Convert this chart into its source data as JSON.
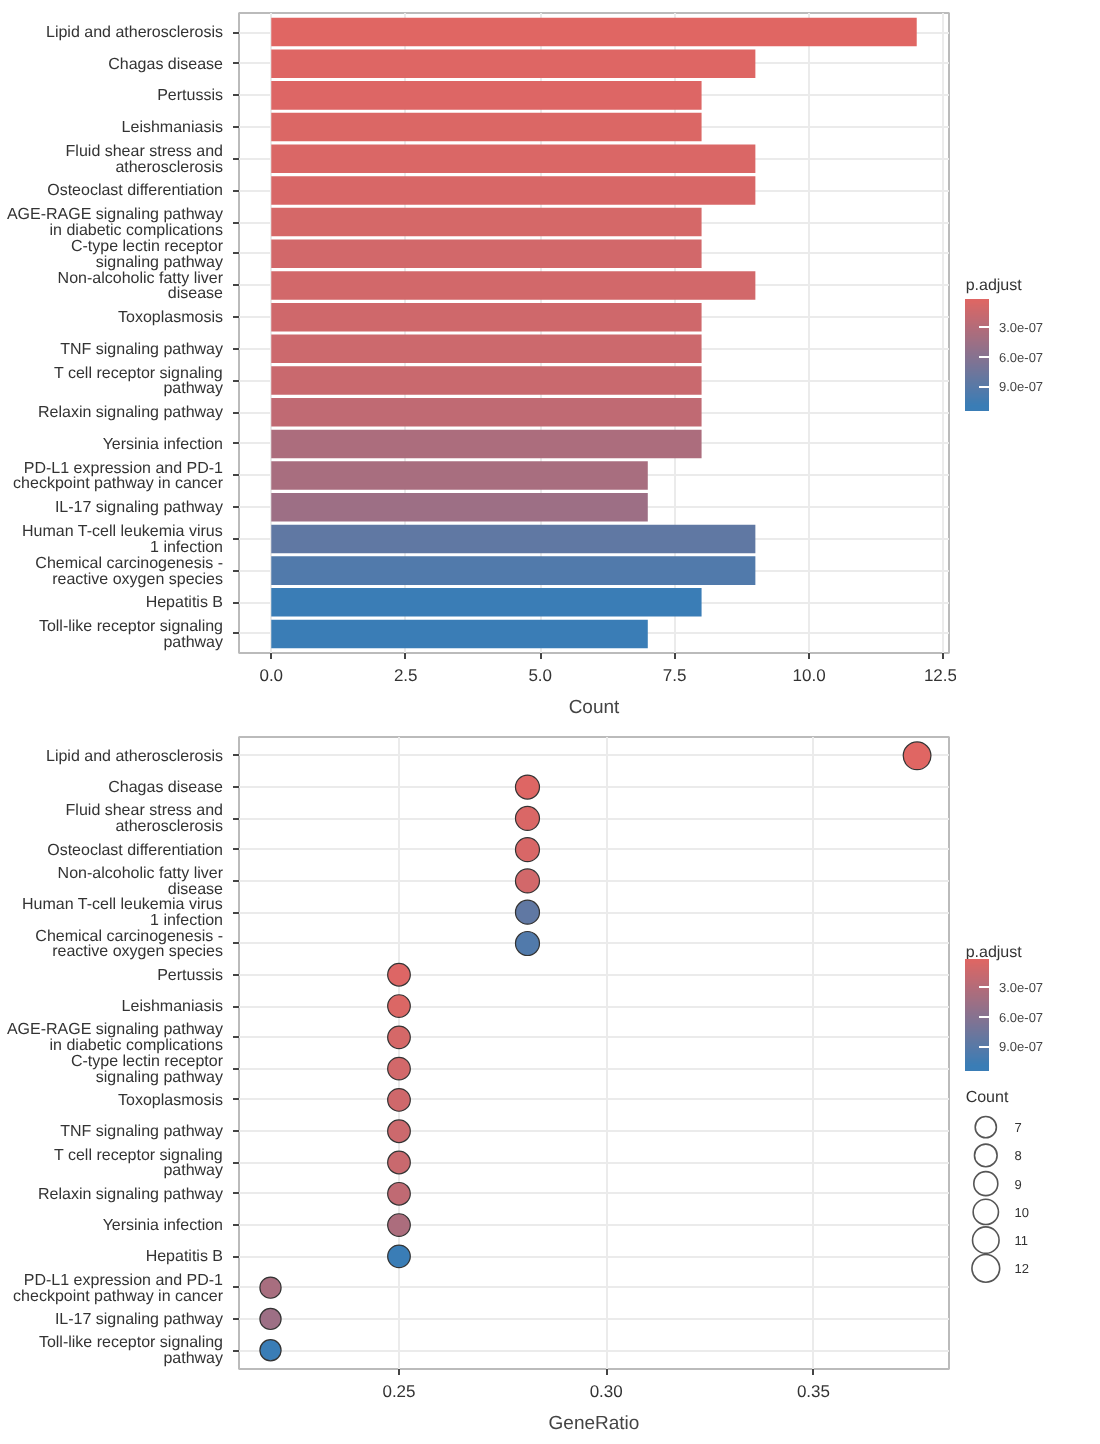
{
  "chart_data": [
    {
      "type": "bar",
      "orientation": "horizontal",
      "xlabel": "Count",
      "clabel": "p.adjust",
      "categories": [
        "Lipid and atherosclerosis",
        "Chagas disease",
        "Pertussis",
        "Leishmaniasis",
        "Fluid shear stress and\natherosclerosis",
        "Osteoclast differentiation",
        "AGE-RAGE signaling pathway\nin diabetic complications",
        "C-type lectin receptor\nsignaling pathway",
        "Non-alcoholic fatty liver\ndisease",
        "Toxoplasmosis",
        "TNF signaling pathway",
        "T cell receptor signaling\npathway",
        "Relaxin signaling pathway",
        "Yersinia infection",
        "PD-L1 expression and PD-1\ncheckpoint pathway in cancer",
        "IL-17 signaling pathway",
        "Human T-cell leukemia virus\n1 infection",
        "Chemical carcinogenesis -\nreactive oxygen species",
        "Hepatitis B",
        "Toll-like receptor signaling\npathway"
      ],
      "values": [
        12,
        9,
        8,
        8,
        9,
        9,
        8,
        8,
        9,
        8,
        8,
        8,
        8,
        8,
        7,
        7,
        9,
        9,
        8,
        7
      ],
      "cvalues": [
        1e-08,
        2e-08,
        3e-08,
        4e-08,
        5e-08,
        6e-08,
        8e-08,
        1e-07,
        1e-07,
        1.2e-07,
        1.4e-07,
        1.6e-07,
        2.2e-07,
        3.5e-07,
        3.8e-07,
        4.5e-07,
        8.5e-07,
        9.5e-07,
        1.1e-06,
        1.1e-06
      ],
      "colors": [
        "#e06663",
        "#de6664",
        "#dd6665",
        "#db6765",
        "#da6766",
        "#d86767",
        "#d56868",
        "#d2686a",
        "#d2686a",
        "#cf686b",
        "#cc696d",
        "#c9696e",
        "#c06a73",
        "#ac6d7d",
        "#a86e7f",
        "#9d6f85",
        "#6078a3",
        "#517aab",
        "#3a7db6",
        "#3a7db6"
      ],
      "clim": [
        1e-08,
        1.15e-06
      ],
      "cticks": [
        {
          "value": 3e-07,
          "label": "3.0e-07"
        },
        {
          "value": 6e-07,
          "label": "6.0e-07"
        },
        {
          "value": 9e-07,
          "label": "9.0e-07"
        }
      ],
      "xlim": [
        -0.6,
        12.6
      ],
      "xticks": [
        {
          "value": 0,
          "label": "0.0"
        },
        2.5,
        {
          "value": 5,
          "label": "5.0"
        },
        7.5,
        {
          "value": 10,
          "label": "10.0"
        },
        12.5
      ],
      "grid": true
    },
    {
      "type": "bubble",
      "orientation": "horizontal",
      "xlabel": "GeneRatio",
      "clabel": "p.adjust",
      "legend_title": "Count",
      "categories": [
        "Lipid and atherosclerosis",
        "Chagas disease",
        "Fluid shear stress and\natherosclerosis",
        "Osteoclast differentiation",
        "Non-alcoholic fatty liver\ndisease",
        "Human T-cell leukemia virus\n1 infection",
        "Chemical carcinogenesis -\nreactive oxygen species",
        "Pertussis",
        "Leishmaniasis",
        "AGE-RAGE signaling pathway\nin diabetic complications",
        "C-type lectin receptor\nsignaling pathway",
        "Toxoplasmosis",
        "TNF signaling pathway",
        "T cell receptor signaling\npathway",
        "Relaxin signaling pathway",
        "Yersinia infection",
        "Hepatitis B",
        "PD-L1 expression and PD-1\ncheckpoint pathway in cancer",
        "IL-17 signaling pathway",
        "Toll-like receptor signaling\npathway"
      ],
      "values": [
        0.375,
        0.281,
        0.281,
        0.281,
        0.281,
        0.281,
        0.281,
        0.25,
        0.25,
        0.25,
        0.25,
        0.25,
        0.25,
        0.25,
        0.25,
        0.25,
        0.25,
        0.219,
        0.219,
        0.219
      ],
      "sizes": [
        12,
        9,
        9,
        9,
        9,
        9,
        9,
        8,
        8,
        8,
        8,
        8,
        8,
        8,
        8,
        8,
        8,
        7,
        7,
        7
      ],
      "size_legend": [
        7,
        8,
        9,
        10,
        11,
        12
      ],
      "cvalues": [
        1e-08,
        2e-08,
        5e-08,
        6e-08,
        1e-07,
        8.5e-07,
        9.5e-07,
        3e-08,
        4e-08,
        8e-08,
        1e-07,
        1.2e-07,
        1.4e-07,
        1.6e-07,
        2.2e-07,
        3.5e-07,
        1.1e-06,
        3.8e-07,
        4.5e-07,
        1.1e-06
      ],
      "colors": [
        "#e06663",
        "#de6664",
        "#da6766",
        "#d86767",
        "#d2686a",
        "#6078a3",
        "#517aab",
        "#dd6665",
        "#db6765",
        "#d56868",
        "#d2686a",
        "#cf686b",
        "#cc696d",
        "#c9696e",
        "#c06a73",
        "#ac6d7d",
        "#3a7db6",
        "#a86e7f",
        "#9d6f85",
        "#3a7db6"
      ],
      "clim": [
        1e-08,
        1.15e-06
      ],
      "cticks": [
        {
          "value": 3e-07,
          "label": "3.0e-07"
        },
        {
          "value": 6e-07,
          "label": "6.0e-07"
        },
        {
          "value": 9e-07,
          "label": "9.0e-07"
        }
      ],
      "xlim": [
        0.2114,
        0.3827
      ],
      "xticks": [
        0.25,
        {
          "value": 0.3,
          "label": "0.30"
        },
        0.35
      ],
      "grid": true
    }
  ]
}
